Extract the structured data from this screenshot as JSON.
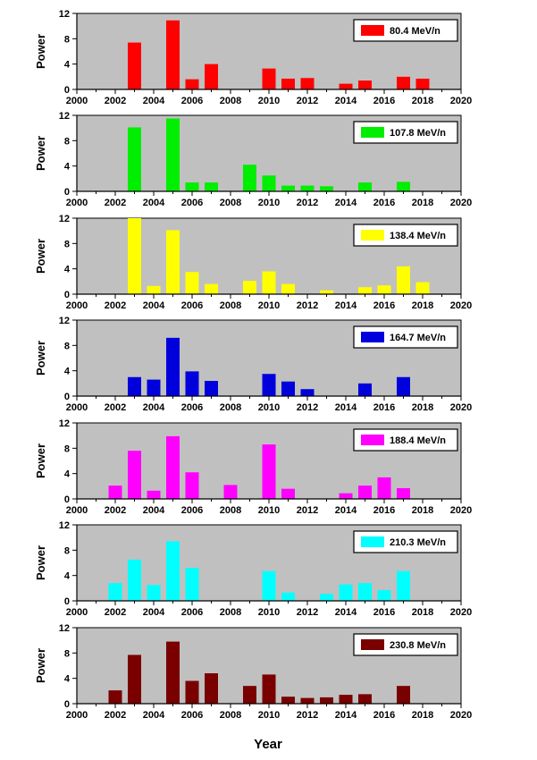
{
  "xlabel": "Year",
  "chart_data": [
    {
      "type": "bar",
      "legend": "80.4 MeV/n",
      "color": "#ff0000",
      "ylabel": "Power",
      "xlim": [
        2000,
        2020
      ],
      "ylim": [
        0,
        12
      ],
      "xticks": [
        2000,
        2002,
        2004,
        2006,
        2008,
        2010,
        2012,
        2014,
        2016,
        2018,
        2020
      ],
      "yticks": [
        0,
        4,
        8,
        12
      ],
      "x": [
        2003,
        2005,
        2006,
        2007,
        2010,
        2011,
        2012,
        2014,
        2015,
        2017,
        2018
      ],
      "values": [
        7.4,
        10.9,
        1.6,
        4.0,
        3.3,
        1.7,
        1.8,
        0.9,
        1.4,
        2.0,
        1.7
      ]
    },
    {
      "type": "bar",
      "legend": "107.8 MeV/n",
      "color": "#00ee00",
      "ylabel": "Power",
      "xlim": [
        2000,
        2020
      ],
      "ylim": [
        0,
        12
      ],
      "xticks": [
        2000,
        2002,
        2004,
        2006,
        2008,
        2010,
        2012,
        2014,
        2016,
        2018,
        2020
      ],
      "yticks": [
        0,
        4,
        8,
        12
      ],
      "x": [
        2003,
        2005,
        2006,
        2007,
        2009,
        2010,
        2011,
        2012,
        2013,
        2015,
        2017
      ],
      "values": [
        10.1,
        11.5,
        1.4,
        1.4,
        4.2,
        2.5,
        0.9,
        0.9,
        0.8,
        1.4,
        1.5
      ]
    },
    {
      "type": "bar",
      "legend": "138.4 MeV/n",
      "color": "#ffff00",
      "ylabel": "Power",
      "xlim": [
        2000,
        2020
      ],
      "ylim": [
        0,
        12
      ],
      "xticks": [
        2000,
        2002,
        2004,
        2006,
        2008,
        2010,
        2012,
        2014,
        2016,
        2018,
        2020
      ],
      "yticks": [
        0,
        4,
        8,
        12
      ],
      "x": [
        2003,
        2004,
        2005,
        2006,
        2007,
        2009,
        2010,
        2011,
        2013,
        2015,
        2016,
        2017,
        2018
      ],
      "values": [
        12.0,
        1.3,
        10.1,
        3.5,
        1.6,
        2.1,
        3.6,
        1.6,
        0.6,
        1.1,
        1.4,
        4.4,
        1.9
      ]
    },
    {
      "type": "bar",
      "legend": "164.7 MeV/n",
      "color": "#0000dd",
      "ylabel": "Power",
      "xlim": [
        2000,
        2020
      ],
      "ylim": [
        0,
        12
      ],
      "xticks": [
        2000,
        2002,
        2004,
        2006,
        2008,
        2010,
        2012,
        2014,
        2016,
        2018,
        2020
      ],
      "yticks": [
        0,
        4,
        8,
        12
      ],
      "x": [
        2003,
        2004,
        2005,
        2006,
        2007,
        2010,
        2011,
        2012,
        2015,
        2017
      ],
      "values": [
        3.0,
        2.6,
        9.2,
        3.9,
        2.4,
        3.5,
        2.3,
        1.1,
        2.0,
        3.0
      ]
    },
    {
      "type": "bar",
      "legend": "188.4 MeV/n",
      "color": "#ff00ff",
      "ylabel": "Power",
      "xlim": [
        2000,
        2020
      ],
      "ylim": [
        0,
        12
      ],
      "xticks": [
        2000,
        2002,
        2004,
        2006,
        2008,
        2010,
        2012,
        2014,
        2016,
        2018,
        2020
      ],
      "yticks": [
        0,
        4,
        8,
        12
      ],
      "x": [
        2002,
        2003,
        2004,
        2005,
        2006,
        2008,
        2010,
        2011,
        2014,
        2015,
        2016,
        2017
      ],
      "values": [
        2.1,
        7.6,
        1.3,
        9.9,
        4.2,
        2.2,
        8.6,
        1.6,
        0.9,
        2.1,
        3.4,
        1.7
      ]
    },
    {
      "type": "bar",
      "legend": "210.3 MeV/n",
      "color": "#00ffff",
      "ylabel": "Power",
      "xlim": [
        2000,
        2020
      ],
      "ylim": [
        0,
        12
      ],
      "xticks": [
        2000,
        2002,
        2004,
        2006,
        2008,
        2010,
        2012,
        2014,
        2016,
        2018,
        2020
      ],
      "yticks": [
        0,
        4,
        8,
        12
      ],
      "x": [
        2002,
        2003,
        2004,
        2005,
        2006,
        2010,
        2011,
        2013,
        2014,
        2015,
        2016,
        2017
      ],
      "values": [
        2.8,
        6.5,
        2.5,
        9.4,
        5.2,
        4.7,
        1.3,
        1.1,
        2.6,
        2.8,
        1.7,
        4.7
      ]
    },
    {
      "type": "bar",
      "legend": "230.8 MeV/n",
      "color": "#7a0000",
      "ylabel": "Power",
      "xlim": [
        2000,
        2020
      ],
      "ylim": [
        0,
        12
      ],
      "xticks": [
        2000,
        2002,
        2004,
        2006,
        2008,
        2010,
        2012,
        2014,
        2016,
        2018,
        2020
      ],
      "yticks": [
        0,
        4,
        8,
        12
      ],
      "x": [
        2002,
        2003,
        2005,
        2006,
        2007,
        2009,
        2010,
        2011,
        2012,
        2013,
        2014,
        2015,
        2017
      ],
      "values": [
        2.1,
        7.7,
        9.8,
        3.6,
        4.8,
        2.8,
        4.6,
        1.1,
        0.9,
        1.0,
        1.4,
        1.5,
        2.8
      ]
    }
  ]
}
